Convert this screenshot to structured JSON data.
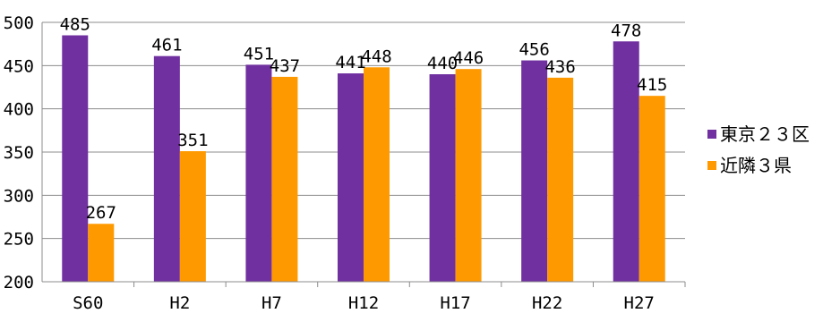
{
  "chart_data": {
    "type": "bar",
    "categories": [
      "S60",
      "H2",
      "H7",
      "H12",
      "H17",
      "H22",
      "H27"
    ],
    "series": [
      {
        "name": "東京２３区",
        "color": "#7030a0",
        "values": [
          485,
          461,
          451,
          441,
          440,
          456,
          478
        ]
      },
      {
        "name": "近隣３県",
        "color": "#ff9900",
        "values": [
          267,
          351,
          437,
          448,
          446,
          436,
          415
        ]
      }
    ],
    "ylim": [
      200,
      500
    ],
    "yticks": [
      200,
      250,
      300,
      350,
      400,
      450,
      500
    ],
    "gridlines": true,
    "data_labels": true,
    "legend_position": "right"
  }
}
